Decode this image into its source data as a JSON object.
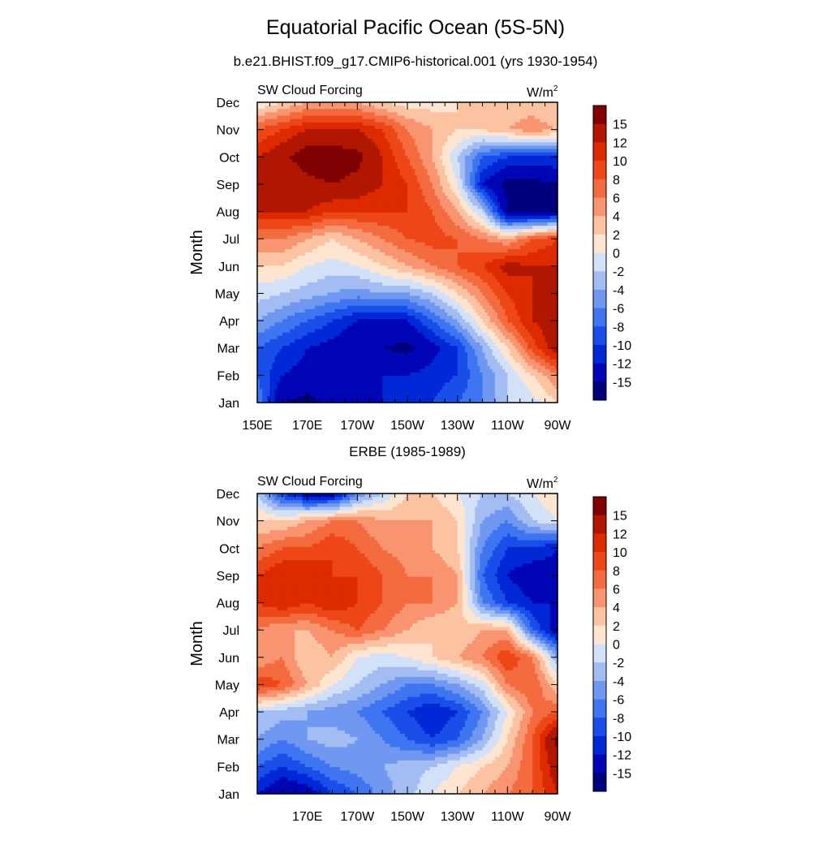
{
  "figure": {
    "title": "Equatorial Pacific Ocean (5S-5N)"
  },
  "chart_data": [
    {
      "type": "heatmap",
      "title": "b.e21.BHIST.f09_g17.CMIP6-historical.001 (yrs 1930-1954)",
      "left_string": "SW Cloud Forcing",
      "right_string": "W/m",
      "right_string_sup": "2",
      "xlabel": "",
      "ylabel": "Month",
      "x_ticklabels": [
        "150E",
        "170E",
        "170W",
        "150W",
        "130W",
        "110W",
        "90W"
      ],
      "x_tick_lon": [
        150,
        170,
        190,
        210,
        230,
        250,
        270
      ],
      "xlim": [
        150,
        270
      ],
      "y_ticklabels": [
        "Jan",
        "Feb",
        "Mar",
        "Apr",
        "May",
        "Jun",
        "Jul",
        "Aug",
        "Sep",
        "Oct",
        "Nov",
        "Dec"
      ],
      "colorbar_labels": [
        "15",
        "12",
        "10",
        "8",
        "6",
        "4",
        "2",
        "0",
        "-2",
        "-4",
        "-6",
        "-8",
        "-10",
        "-12",
        "-15"
      ],
      "x_lon": [
        150,
        160,
        170,
        180,
        190,
        200,
        210,
        220,
        230,
        240,
        250,
        260,
        270
      ],
      "months": [
        "Jan",
        "Feb",
        "Mar",
        "Apr",
        "May",
        "Jun",
        "Jul",
        "Aug",
        "Sep",
        "Oct",
        "Nov",
        "Dec"
      ],
      "z": [
        [
          -6,
          -15,
          -16,
          -14,
          -12,
          -12,
          -12,
          -10,
          -8,
          -6,
          -2,
          -1,
          2
        ],
        [
          -8,
          -12,
          -13,
          -13,
          -13,
          -12,
          -12,
          -11,
          -10,
          -6,
          -2,
          2,
          6
        ],
        [
          -8,
          -10,
          -12,
          -13,
          -15,
          -15,
          -16,
          -13,
          -10,
          -4,
          2,
          9,
          14
        ],
        [
          -4,
          -6,
          -8,
          -10,
          -12,
          -12,
          -12,
          -8,
          -4,
          2,
          8,
          12,
          14
        ],
        [
          -1,
          -2,
          -3,
          -4,
          -5,
          -4,
          -4,
          -2,
          2,
          6,
          10,
          12,
          12
        ],
        [
          2,
          2,
          0,
          -1,
          0,
          2,
          4,
          6,
          8,
          10,
          13,
          12,
          12
        ],
        [
          6,
          6,
          4,
          2,
          4,
          6,
          8,
          9,
          8,
          6,
          4,
          8,
          10
        ],
        [
          12,
          12,
          12,
          10,
          10,
          10,
          10,
          8,
          4,
          -2,
          -15,
          -16,
          -15
        ],
        [
          13,
          12,
          14,
          15,
          14,
          12,
          10,
          6,
          0,
          -12,
          -16,
          -16,
          -15
        ],
        [
          12,
          14,
          17,
          17,
          16,
          12,
          8,
          4,
          -2,
          -8,
          -10,
          -10,
          -10
        ],
        [
          8,
          10,
          12,
          12,
          12,
          10,
          6,
          4,
          2,
          2,
          4,
          5,
          4
        ],
        [
          0,
          2,
          4,
          4,
          4,
          2,
          1,
          1,
          2,
          2,
          3,
          3,
          2
        ]
      ]
    },
    {
      "type": "heatmap",
      "title": "ERBE (1985-1989)",
      "left_string": "SW Cloud Forcing",
      "right_string": "W/m",
      "right_string_sup": "2",
      "xlabel": "",
      "ylabel": "Month",
      "x_ticklabels": [
        "170E",
        "170W",
        "150W",
        "130W",
        "110W",
        "90W"
      ],
      "x_tick_lon": [
        170,
        190,
        210,
        230,
        250,
        270
      ],
      "xlim": [
        150,
        270
      ],
      "y_ticklabels": [
        "Jan",
        "Feb",
        "Mar",
        "Apr",
        "May",
        "Jun",
        "Jul",
        "Aug",
        "Sep",
        "Oct",
        "Nov",
        "Dec"
      ],
      "colorbar_labels": [
        "15",
        "12",
        "10",
        "8",
        "6",
        "4",
        "2",
        "0",
        "-2",
        "-4",
        "-6",
        "-8",
        "-10",
        "-12",
        "-15"
      ],
      "x_lon": [
        150,
        160,
        170,
        180,
        190,
        200,
        210,
        220,
        230,
        240,
        250,
        260,
        270
      ],
      "months": [
        "Jan",
        "Feb",
        "Mar",
        "Apr",
        "May",
        "Jun",
        "Jul",
        "Aug",
        "Sep",
        "Oct",
        "Nov",
        "Dec"
      ],
      "z": [
        [
          -12,
          -15,
          -14,
          -10,
          -8,
          -5,
          -3,
          0,
          2,
          4,
          6,
          8,
          12
        ],
        [
          -8,
          -10,
          -8,
          -6,
          -5,
          -4,
          -3,
          -2,
          0,
          2,
          4,
          8,
          14
        ],
        [
          -4,
          -6,
          -4,
          -3,
          -4,
          -6,
          -8,
          -10,
          -8,
          -4,
          2,
          8,
          16
        ],
        [
          -2,
          -3,
          -4,
          -5,
          -6,
          -8,
          -10,
          -12,
          -10,
          -6,
          0,
          6,
          8
        ],
        [
          10,
          8,
          4,
          0,
          -2,
          -4,
          -6,
          -6,
          -4,
          -1,
          6,
          8,
          2
        ],
        [
          4,
          6,
          2,
          4,
          0,
          -1,
          0,
          2,
          4,
          6,
          10,
          6,
          -4
        ],
        [
          6,
          4,
          4,
          6,
          8,
          6,
          4,
          2,
          2,
          4,
          4,
          -8,
          -14
        ],
        [
          10,
          12,
          10,
          12,
          10,
          8,
          6,
          6,
          4,
          -6,
          -10,
          -12,
          -12
        ],
        [
          10,
          12,
          12,
          10,
          10,
          8,
          6,
          6,
          4,
          -8,
          -12,
          -14,
          -13
        ],
        [
          6,
          8,
          8,
          10,
          8,
          6,
          5,
          4,
          2,
          -6,
          -10,
          -10,
          -12
        ],
        [
          2,
          2,
          4,
          6,
          6,
          4,
          4,
          4,
          2,
          -4,
          -6,
          -2,
          0
        ],
        [
          -2,
          -10,
          -14,
          -14,
          -6,
          -2,
          2,
          2,
          0,
          -2,
          -2,
          0,
          2
        ]
      ]
    }
  ],
  "palette": {
    "levels": [
      -15,
      -12,
      -10,
      -8,
      -6,
      -4,
      -2,
      0,
      2,
      4,
      6,
      8,
      10,
      12,
      15
    ],
    "colors": [
      "#00007f",
      "#0005b5",
      "#0028d6",
      "#1a4ee8",
      "#3f75f0",
      "#7098f0",
      "#a3bdf2",
      "#d2e1f7",
      "#fde5d2",
      "#fcc3a3",
      "#f99470",
      "#f36b3f",
      "#ed4718",
      "#dd2a00",
      "#b01600",
      "#7f0000"
    ]
  }
}
